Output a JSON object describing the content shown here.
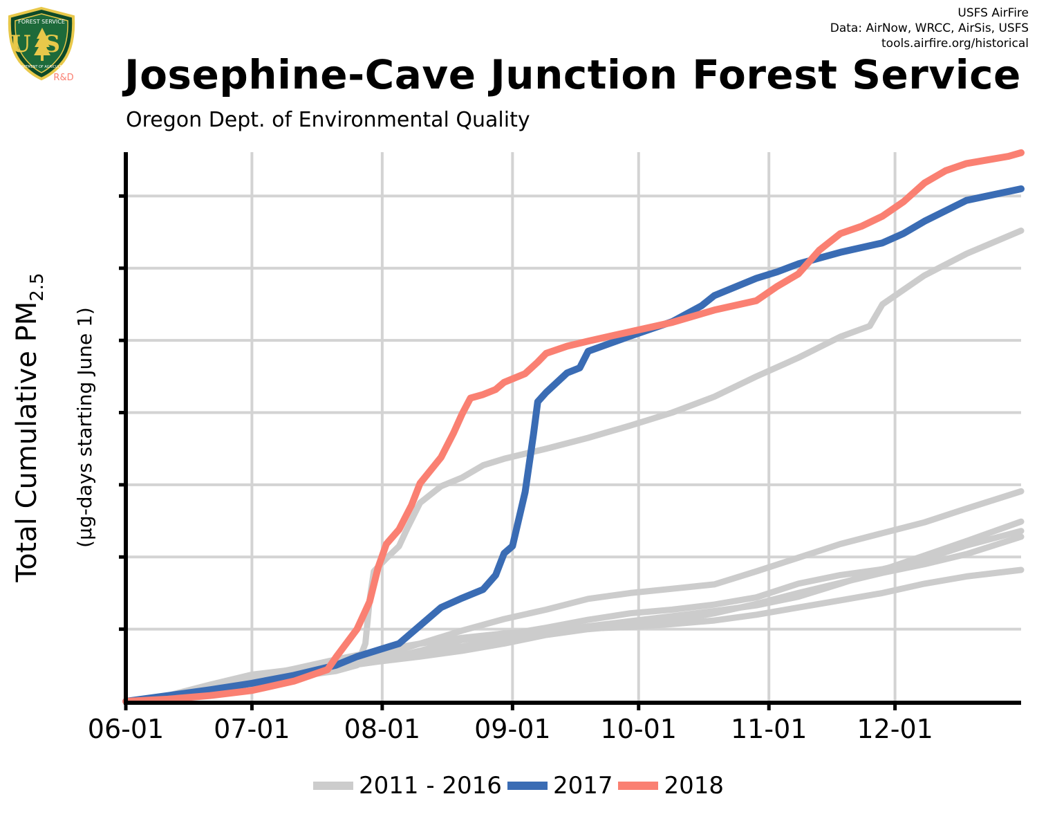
{
  "header": {
    "logo": {
      "icon": "usfs-shield-icon",
      "top_text": "FOREST SERVICE",
      "letters": "US",
      "bottom_text": "DEPARTMENT OF AGRICULTURE",
      "tag": "R&D"
    },
    "credits": [
      "USFS AirFire",
      "Data: AirNow, WRCC, AirSis, USFS",
      "tools.airfire.org/historical"
    ]
  },
  "colors": {
    "historical": "#cccccc",
    "y2017": "#3a6cb4",
    "y2018": "#fa8072",
    "grid": "#d3d3d3",
    "axis": "#000000"
  },
  "chart_data": {
    "type": "line",
    "title": "Josephine-Cave Junction Forest Service",
    "subtitle": "Oregon Dept. of Environmental Quality",
    "ylabel": "Total Cumulative PM",
    "ylabel_sub": "2.5",
    "ylabel2": "(µg-days starting June 1)",
    "xlabel": "",
    "x_ticks": [
      "06-01",
      "07-01",
      "08-01",
      "09-01",
      "10-01",
      "11-01",
      "12-01"
    ],
    "x_tick_days": [
      0,
      30,
      61,
      92,
      122,
      153,
      183
    ],
    "xlim": [
      0,
      213
    ],
    "ylim": [
      0,
      7.55
    ],
    "y_grid": [
      1,
      2,
      3,
      4,
      5,
      6,
      7
    ],
    "grid": true,
    "legend_position": "bottom",
    "legend": [
      "2011 - 2016",
      "2017",
      "2018"
    ],
    "series": [
      {
        "group": "2011 - 2016",
        "points": [
          [
            0,
            0
          ],
          [
            10,
            0.08
          ],
          [
            20,
            0.2
          ],
          [
            30,
            0.33
          ],
          [
            40,
            0.45
          ],
          [
            50,
            0.58
          ],
          [
            60,
            0.7
          ],
          [
            70,
            0.8
          ],
          [
            80,
            0.88
          ],
          [
            90,
            0.94
          ],
          [
            100,
            0.98
          ],
          [
            110,
            1.01
          ],
          [
            120,
            1.03
          ],
          [
            130,
            1.07
          ],
          [
            140,
            1.12
          ],
          [
            150,
            1.2
          ],
          [
            160,
            1.3
          ],
          [
            170,
            1.4
          ],
          [
            180,
            1.5
          ],
          [
            190,
            1.63
          ],
          [
            200,
            1.73
          ],
          [
            213,
            1.82
          ]
        ]
      },
      {
        "group": "2011 - 2016",
        "points": [
          [
            0,
            0
          ],
          [
            10,
            0.06
          ],
          [
            20,
            0.17
          ],
          [
            30,
            0.28
          ],
          [
            40,
            0.38
          ],
          [
            50,
            0.48
          ],
          [
            60,
            0.6
          ],
          [
            70,
            0.68
          ],
          [
            80,
            0.76
          ],
          [
            90,
            0.86
          ],
          [
            100,
            0.96
          ],
          [
            110,
            1.04
          ],
          [
            120,
            1.11
          ],
          [
            130,
            1.18
          ],
          [
            140,
            1.25
          ],
          [
            150,
            1.33
          ],
          [
            160,
            1.45
          ],
          [
            170,
            1.63
          ],
          [
            180,
            1.82
          ],
          [
            190,
            2.02
          ],
          [
            200,
            2.22
          ],
          [
            213,
            2.49
          ]
        ]
      },
      {
        "group": "2011 - 2016",
        "points": [
          [
            0,
            0
          ],
          [
            10,
            0.07
          ],
          [
            20,
            0.17
          ],
          [
            30,
            0.27
          ],
          [
            40,
            0.36
          ],
          [
            50,
            0.47
          ],
          [
            60,
            0.55
          ],
          [
            70,
            0.62
          ],
          [
            80,
            0.7
          ],
          [
            90,
            0.8
          ],
          [
            100,
            0.92
          ],
          [
            110,
            1
          ],
          [
            120,
            1.05
          ],
          [
            130,
            1.12
          ],
          [
            140,
            1.22
          ],
          [
            150,
            1.35
          ],
          [
            160,
            1.5
          ],
          [
            170,
            1.64
          ],
          [
            180,
            1.78
          ],
          [
            190,
            1.9
          ],
          [
            200,
            2.04
          ],
          [
            213,
            2.28
          ]
        ]
      },
      {
        "group": "2011 - 2016",
        "points": [
          [
            0,
            0
          ],
          [
            10,
            0.05
          ],
          [
            20,
            0.16
          ],
          [
            30,
            0.27
          ],
          [
            40,
            0.37
          ],
          [
            50,
            0.46
          ],
          [
            60,
            0.56
          ],
          [
            70,
            0.7
          ],
          [
            80,
            0.85
          ],
          [
            90,
            0.92
          ],
          [
            100,
            1.02
          ],
          [
            110,
            1.13
          ],
          [
            120,
            1.22
          ],
          [
            130,
            1.27
          ],
          [
            140,
            1.34
          ],
          [
            150,
            1.44
          ],
          [
            160,
            1.63
          ],
          [
            170,
            1.75
          ],
          [
            180,
            1.83
          ],
          [
            190,
            1.97
          ],
          [
            200,
            2.16
          ],
          [
            213,
            2.36
          ]
        ]
      },
      {
        "group": "2011 - 2016",
        "points": [
          [
            0,
            0
          ],
          [
            10,
            0.08
          ],
          [
            20,
            0.23
          ],
          [
            30,
            0.37
          ],
          [
            40,
            0.44
          ],
          [
            50,
            0.5
          ],
          [
            60,
            0.62
          ],
          [
            70,
            0.8
          ],
          [
            80,
            0.98
          ],
          [
            90,
            1.14
          ],
          [
            100,
            1.27
          ],
          [
            110,
            1.42
          ],
          [
            120,
            1.5
          ],
          [
            130,
            1.56
          ],
          [
            140,
            1.62
          ],
          [
            150,
            1.8
          ],
          [
            160,
            1.99
          ],
          [
            170,
            2.18
          ],
          [
            180,
            2.33
          ],
          [
            190,
            2.48
          ],
          [
            200,
            2.67
          ],
          [
            213,
            2.91
          ]
        ]
      },
      {
        "group": "2011 - 2016",
        "points": [
          [
            0,
            0
          ],
          [
            10,
            0.04
          ],
          [
            20,
            0.13
          ],
          [
            30,
            0.25
          ],
          [
            40,
            0.34
          ],
          [
            50,
            0.42
          ],
          [
            55,
            0.5
          ],
          [
            57,
            0.8
          ],
          [
            58,
            1.4
          ],
          [
            59,
            1.8
          ],
          [
            62,
            1.98
          ],
          [
            65,
            2.15
          ],
          [
            67,
            2.4
          ],
          [
            70,
            2.75
          ],
          [
            75,
            2.98
          ],
          [
            80,
            3.1
          ],
          [
            85,
            3.27
          ],
          [
            90,
            3.36
          ],
          [
            100,
            3.5
          ],
          [
            110,
            3.65
          ],
          [
            120,
            3.82
          ],
          [
            130,
            4
          ],
          [
            140,
            4.22
          ],
          [
            150,
            4.5
          ],
          [
            160,
            4.76
          ],
          [
            170,
            5.05
          ],
          [
            177,
            5.2
          ],
          [
            180,
            5.5
          ],
          [
            190,
            5.9
          ],
          [
            200,
            6.2
          ],
          [
            213,
            6.52
          ]
        ]
      },
      {
        "group": "2017",
        "points": [
          [
            0,
            0
          ],
          [
            10,
            0.08
          ],
          [
            20,
            0.16
          ],
          [
            30,
            0.25
          ],
          [
            40,
            0.36
          ],
          [
            50,
            0.5
          ],
          [
            55,
            0.62
          ],
          [
            60,
            0.71
          ],
          [
            65,
            0.8
          ],
          [
            70,
            1.05
          ],
          [
            75,
            1.3
          ],
          [
            80,
            1.43
          ],
          [
            85,
            1.55
          ],
          [
            88,
            1.75
          ],
          [
            90,
            2.05
          ],
          [
            92,
            2.15
          ],
          [
            95,
            2.9
          ],
          [
            97,
            3.7
          ],
          [
            98,
            4.15
          ],
          [
            100,
            4.28
          ],
          [
            105,
            4.55
          ],
          [
            108,
            4.62
          ],
          [
            110,
            4.85
          ],
          [
            120,
            5.06
          ],
          [
            130,
            5.26
          ],
          [
            137,
            5.48
          ],
          [
            140,
            5.62
          ],
          [
            150,
            5.86
          ],
          [
            155,
            5.95
          ],
          [
            160,
            6.06
          ],
          [
            170,
            6.22
          ],
          [
            180,
            6.35
          ],
          [
            185,
            6.48
          ],
          [
            190,
            6.65
          ],
          [
            200,
            6.94
          ],
          [
            213,
            7.1
          ]
        ]
      },
      {
        "group": "2018",
        "points": [
          [
            0,
            0
          ],
          [
            10,
            0.03
          ],
          [
            20,
            0.08
          ],
          [
            30,
            0.15
          ],
          [
            40,
            0.28
          ],
          [
            45,
            0.38
          ],
          [
            48,
            0.44
          ],
          [
            50,
            0.61
          ],
          [
            55,
            1
          ],
          [
            58,
            1.38
          ],
          [
            60,
            1.85
          ],
          [
            62,
            2.18
          ],
          [
            65,
            2.38
          ],
          [
            68,
            2.72
          ],
          [
            70,
            3.02
          ],
          [
            75,
            3.38
          ],
          [
            78,
            3.72
          ],
          [
            80,
            3.98
          ],
          [
            82,
            4.2
          ],
          [
            85,
            4.25
          ],
          [
            88,
            4.32
          ],
          [
            90,
            4.42
          ],
          [
            95,
            4.54
          ],
          [
            98,
            4.7
          ],
          [
            100,
            4.82
          ],
          [
            105,
            4.92
          ],
          [
            110,
            4.99
          ],
          [
            120,
            5.12
          ],
          [
            130,
            5.25
          ],
          [
            140,
            5.42
          ],
          [
            150,
            5.55
          ],
          [
            155,
            5.75
          ],
          [
            160,
            5.92
          ],
          [
            165,
            6.25
          ],
          [
            170,
            6.48
          ],
          [
            175,
            6.58
          ],
          [
            180,
            6.72
          ],
          [
            185,
            6.92
          ],
          [
            190,
            7.18
          ],
          [
            195,
            7.35
          ],
          [
            200,
            7.45
          ],
          [
            205,
            7.5
          ],
          [
            210,
            7.55
          ],
          [
            213,
            7.6
          ]
        ]
      }
    ]
  }
}
